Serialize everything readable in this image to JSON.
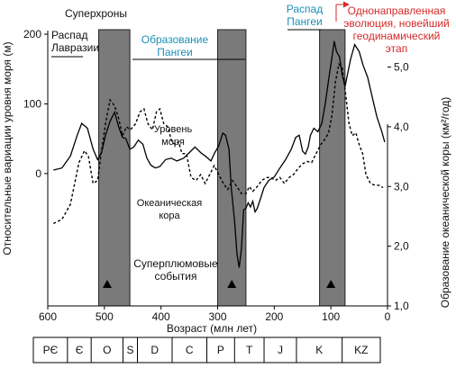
{
  "chart_data": {
    "type": "line",
    "x_axis": {
      "label": "Возраст (млн лет)",
      "ticks": [
        600,
        500,
        400,
        300,
        200,
        100,
        0
      ],
      "range": [
        600,
        0
      ]
    },
    "y_left": {
      "label": "Относительные вариации уровня моря (м)",
      "ticks": [
        200,
        100,
        0
      ],
      "range": [
        -190,
        200
      ]
    },
    "y_right": {
      "label": "Образование океанической коры (км²/год)",
      "ticks": [
        "5,0",
        "4,0",
        "3,0",
        "2,0",
        "1,0"
      ],
      "tick_values": [
        5.0,
        4.0,
        3.0,
        2.0,
        1.0
      ],
      "range": [
        1.0,
        5.55
      ]
    },
    "superchrons": {
      "label": "Суперхроны",
      "bands": [
        [
          510,
          455
        ],
        [
          300,
          250
        ],
        [
          120,
          75
        ]
      ]
    },
    "plume_events": {
      "label": "Суперплюмовые события",
      "ages": [
        495,
        275,
        100
      ]
    },
    "series": [
      {
        "name": "Уровень моря",
        "axis": "left",
        "style": "solid",
        "points": [
          [
            590,
            5
          ],
          [
            575,
            8
          ],
          [
            560,
            25
          ],
          [
            548,
            55
          ],
          [
            540,
            72
          ],
          [
            530,
            65
          ],
          [
            520,
            35
          ],
          [
            512,
            20
          ],
          [
            505,
            30
          ],
          [
            498,
            55
          ],
          [
            490,
            75
          ],
          [
            482,
            88
          ],
          [
            474,
            65
          ],
          [
            468,
            52
          ],
          [
            462,
            50
          ],
          [
            455,
            35
          ],
          [
            448,
            38
          ],
          [
            440,
            48
          ],
          [
            432,
            42
          ],
          [
            425,
            22
          ],
          [
            418,
            12
          ],
          [
            410,
            8
          ],
          [
            402,
            10
          ],
          [
            392,
            20
          ],
          [
            382,
            22
          ],
          [
            372,
            18
          ],
          [
            360,
            22
          ],
          [
            350,
            30
          ],
          [
            340,
            38
          ],
          [
            330,
            30
          ],
          [
            320,
            24
          ],
          [
            312,
            18
          ],
          [
            305,
            30
          ],
          [
            298,
            40
          ],
          [
            291,
            58
          ],
          [
            286,
            55
          ],
          [
            280,
            35
          ],
          [
            276,
            -20
          ],
          [
            270,
            -70
          ],
          [
            266,
            -115
          ],
          [
            262,
            -135
          ],
          [
            258,
            -108
          ],
          [
            254,
            -52
          ],
          [
            250,
            -50
          ],
          [
            246,
            -42
          ],
          [
            242,
            -48
          ],
          [
            238,
            -40
          ],
          [
            234,
            -55
          ],
          [
            230,
            -50
          ],
          [
            224,
            -35
          ],
          [
            218,
            -20
          ],
          [
            210,
            -10
          ],
          [
            200,
            -5
          ],
          [
            190,
            8
          ],
          [
            180,
            20
          ],
          [
            170,
            35
          ],
          [
            162,
            52
          ],
          [
            156,
            55
          ],
          [
            150,
            32
          ],
          [
            145,
            28
          ],
          [
            140,
            38
          ],
          [
            136,
            55
          ],
          [
            130,
            65
          ],
          [
            123,
            60
          ],
          [
            116,
            72
          ],
          [
            110,
            100
          ],
          [
            104,
            135
          ],
          [
            99,
            162
          ],
          [
            94,
            190
          ],
          [
            90,
            175
          ],
          [
            85,
            168
          ],
          [
            80,
            142
          ],
          [
            75,
            125
          ],
          [
            70,
            145
          ],
          [
            65,
            165
          ],
          [
            58,
            185
          ],
          [
            50,
            175
          ],
          [
            43,
            155
          ],
          [
            35,
            138
          ],
          [
            27,
            110
          ],
          [
            19,
            82
          ],
          [
            10,
            60
          ],
          [
            5,
            45
          ]
        ]
      },
      {
        "name": "Океаническая кора",
        "axis": "right",
        "style": "dashed",
        "points": [
          [
            590,
            2.38
          ],
          [
            575,
            2.45
          ],
          [
            560,
            2.7
          ],
          [
            545,
            3.4
          ],
          [
            535,
            3.6
          ],
          [
            528,
            3.5
          ],
          [
            520,
            3.05
          ],
          [
            512,
            3.1
          ],
          [
            505,
            3.6
          ],
          [
            498,
            4.05
          ],
          [
            490,
            4.45
          ],
          [
            482,
            4.35
          ],
          [
            475,
            4.15
          ],
          [
            468,
            3.85
          ],
          [
            461,
            4.0
          ],
          [
            454,
            3.95
          ],
          [
            445,
            4.05
          ],
          [
            437,
            4.25
          ],
          [
            430,
            4.3
          ],
          [
            423,
            4.05
          ],
          [
            415,
            3.95
          ],
          [
            408,
            4.25
          ],
          [
            402,
            4.3
          ],
          [
            395,
            4.05
          ],
          [
            388,
            4.0
          ],
          [
            381,
            3.75
          ],
          [
            375,
            3.7
          ],
          [
            369,
            3.75
          ],
          [
            363,
            3.55
          ],
          [
            355,
            3.55
          ],
          [
            347,
            3.15
          ],
          [
            338,
            3.1
          ],
          [
            330,
            3.2
          ],
          [
            322,
            3.05
          ],
          [
            314,
            3.2
          ],
          [
            306,
            3.35
          ],
          [
            298,
            3.2
          ],
          [
            290,
            3.05
          ],
          [
            282,
            2.95
          ],
          [
            274,
            3.1
          ],
          [
            266,
            3.0
          ],
          [
            258,
            2.88
          ],
          [
            250,
            2.88
          ],
          [
            244,
            3.0
          ],
          [
            238,
            2.92
          ],
          [
            230,
            3.0
          ],
          [
            222,
            3.1
          ],
          [
            214,
            3.15
          ],
          [
            206,
            3.15
          ],
          [
            198,
            3.1
          ],
          [
            190,
            3.15
          ],
          [
            182,
            3.05
          ],
          [
            174,
            3.15
          ],
          [
            166,
            3.2
          ],
          [
            158,
            3.3
          ],
          [
            150,
            3.38
          ],
          [
            142,
            3.42
          ],
          [
            134,
            3.4
          ],
          [
            126,
            3.55
          ],
          [
            118,
            3.7
          ],
          [
            110,
            3.8
          ],
          [
            104,
            3.9
          ],
          [
            98,
            4.2
          ],
          [
            92,
            4.75
          ],
          [
            86,
            5.05
          ],
          [
            80,
            5.0
          ],
          [
            74,
            4.55
          ],
          [
            68,
            4.05
          ],
          [
            62,
            3.85
          ],
          [
            56,
            3.9
          ],
          [
            50,
            3.7
          ],
          [
            44,
            3.55
          ],
          [
            38,
            3.2
          ],
          [
            30,
            3.05
          ],
          [
            22,
            3.02
          ],
          [
            14,
            3.02
          ],
          [
            8,
            2.98
          ]
        ]
      }
    ],
    "annotations": {
      "laurasia": "Распад\nЛавразии",
      "pangea_form": "Образование\nПангеи",
      "pangea_break": "Распад\nПангеи",
      "unidirectional": "Однонаправленная\nэволюция, новейший\nгеодинамический\nэтап",
      "sea_level": "Уровень\nморя",
      "oceanic": "Океаническая\nкора"
    },
    "periods": [
      {
        "label": "PЄ",
        "from": 600,
        "to": 541
      },
      {
        "label": "Є",
        "from": 541,
        "to": 500
      },
      {
        "label": "O",
        "from": 500,
        "to": 445
      },
      {
        "label": "S",
        "from": 445,
        "to": 420
      },
      {
        "label": "D",
        "from": 420,
        "to": 360
      },
      {
        "label": "C",
        "from": 360,
        "to": 300
      },
      {
        "label": "P",
        "from": 300,
        "to": 252
      },
      {
        "label": "T",
        "from": 252,
        "to": 201
      },
      {
        "label": "J",
        "from": 201,
        "to": 145
      },
      {
        "label": "K",
        "from": 145,
        "to": 66
      },
      {
        "label": "KZ",
        "from": 66,
        "to": 0
      }
    ],
    "colors": {
      "band": "#7a7a7a",
      "line": "#000000",
      "blue_text": "#1b8fb7",
      "red_text": "#d42a2a"
    }
  }
}
